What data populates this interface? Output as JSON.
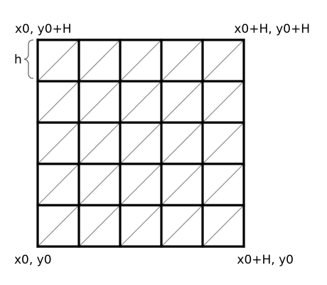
{
  "grid": {
    "rows": 5,
    "cols": 5,
    "cell_split": "diagonal",
    "outline_color": "#000000",
    "diagonal_color": "#8c8c8c",
    "background": "#ffffff"
  },
  "labels": {
    "top_left": "x0, y0+H",
    "top_right": "x0+H, y0+H",
    "bottom_left": "x0, y0",
    "bottom_right": "x0+H, y0",
    "cell_height": "h"
  }
}
